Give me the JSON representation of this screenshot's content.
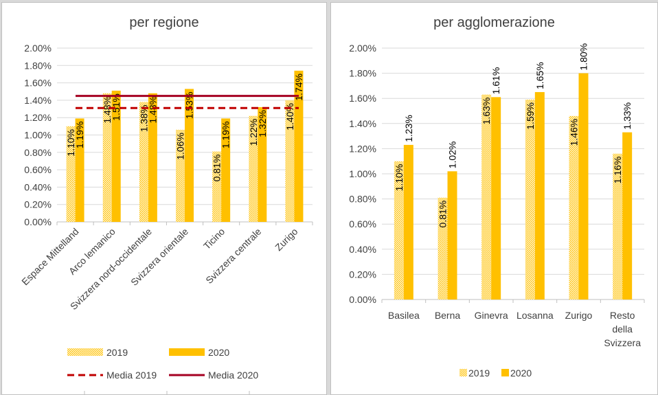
{
  "colors": {
    "bar2019": "#ffc000",
    "bar2020": "#ffc000",
    "media2019": "#c00000",
    "media2020": "#a50021",
    "grid": "#d9d9d9",
    "text": "#404040"
  },
  "chart_data": [
    {
      "type": "bar",
      "title": "per regione",
      "categories": [
        "Espace Mittelland",
        "Arco lemanico",
        "Svizzera nord-occidentale",
        "Svizzera orientale",
        "Ticino",
        "Svizzera centrale",
        "Zurigo"
      ],
      "series": [
        {
          "name": "2019",
          "values": [
            1.1,
            1.48,
            1.38,
            1.06,
            0.81,
            1.22,
            1.4
          ],
          "labels": [
            "1.10%",
            "1.48%",
            "1.38%",
            "1.06%",
            "0.81%",
            "1.22%",
            "1.40%"
          ]
        },
        {
          "name": "2020",
          "values": [
            1.19,
            1.51,
            1.48,
            1.53,
            1.19,
            1.32,
            1.74
          ],
          "labels": [
            "1.19%",
            "1.51%",
            "1.48%",
            "1.53%",
            "1.19%",
            "1.32%",
            "1.74%"
          ]
        }
      ],
      "reference_lines": [
        {
          "name": "Media 2019",
          "value": 1.31,
          "style": "dashed"
        },
        {
          "name": "Media 2020",
          "value": 1.45,
          "style": "solid"
        }
      ],
      "yticks": [
        "0.00%",
        "0.20%",
        "0.40%",
        "0.60%",
        "0.80%",
        "1.00%",
        "1.20%",
        "1.40%",
        "1.60%",
        "1.80%",
        "2.00%"
      ],
      "ylim": [
        0,
        2.0
      ],
      "grid": true,
      "legend": "bottom"
    },
    {
      "type": "bar",
      "title": "per agglomerazione",
      "categories": [
        "Basilea",
        "Berna",
        "Ginevra",
        "Losanna",
        "Zurigo",
        "Resto della Svizzera"
      ],
      "series": [
        {
          "name": "2019",
          "values": [
            1.1,
            0.81,
            1.63,
            1.59,
            1.46,
            1.16
          ],
          "labels": [
            "1.10%",
            "0.81%",
            "1.63%",
            "1.59%",
            "1.46%",
            "1.16%"
          ]
        },
        {
          "name": "2020",
          "values": [
            1.23,
            1.02,
            1.61,
            1.65,
            1.8,
            1.33
          ],
          "labels": [
            "1.23%",
            "1.02%",
            "1.61%",
            "1.65%",
            "1.80%",
            "1.33%"
          ]
        }
      ],
      "yticks": [
        "0.00%",
        "0.20%",
        "0.40%",
        "0.60%",
        "0.80%",
        "1.00%",
        "1.20%",
        "1.40%",
        "1.60%",
        "1.80%",
        "2.00%"
      ],
      "ylim": [
        0,
        2.0
      ],
      "grid": true,
      "legend": "bottom"
    }
  ]
}
